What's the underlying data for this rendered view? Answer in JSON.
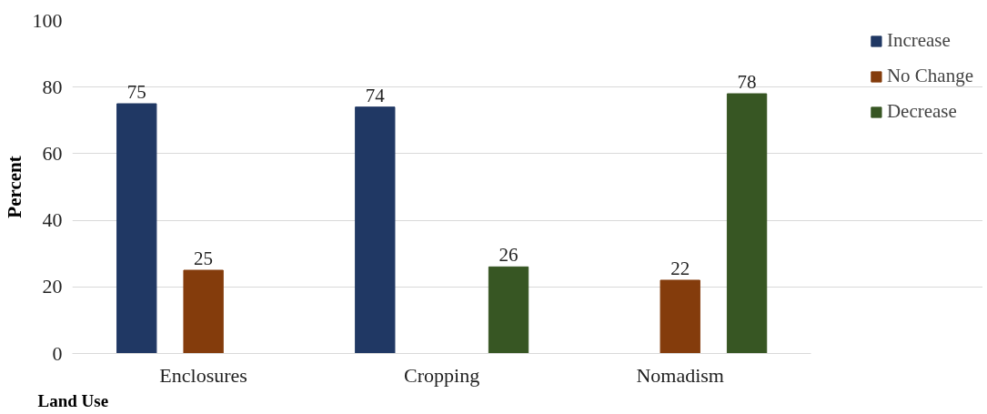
{
  "chart_data": {
    "type": "bar",
    "xlabel": "Land Use",
    "ylabel": "Percent",
    "categories": [
      "Enclosures",
      "Cropping",
      "Nomadism"
    ],
    "series": [
      {
        "name": "Increase",
        "color": "#203864",
        "values": [
          75,
          74,
          null
        ]
      },
      {
        "name": "No Change",
        "color": "#843c0c",
        "values": [
          25,
          null,
          22
        ]
      },
      {
        "name": "Decrease",
        "color": "#375623",
        "values": [
          null,
          26,
          78
        ]
      }
    ],
    "ylim": [
      0,
      100
    ],
    "yticks": [
      0,
      20,
      40,
      60,
      80,
      100
    ],
    "grid": "y",
    "legend": "right",
    "data_labels": true
  }
}
